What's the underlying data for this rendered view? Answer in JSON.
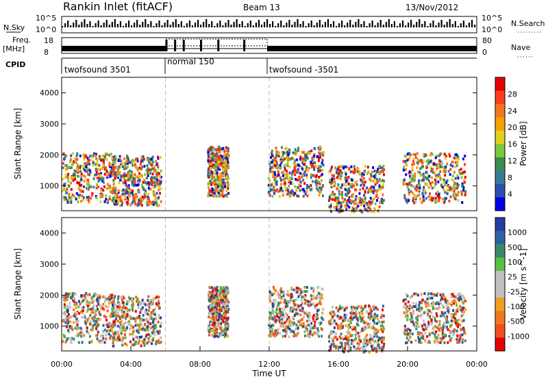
{
  "header": {
    "station": "Rankin Inlet (fitACF)",
    "beam": "Beam 13",
    "date": "13/Nov/2012"
  },
  "status_panels": {
    "nsky_label": "N.Sky",
    "nsearch_label": "N.Search",
    "freq_label_top": "Freq.",
    "freq_label_bottom": "[MHz]",
    "nave_label": "Nave",
    "cpid_label": "CPID",
    "left_ticks_top": [
      "10^5",
      "10^0"
    ],
    "right_ticks_top": [
      "10^5",
      "10^0"
    ],
    "freq_ticks": [
      "18",
      "8"
    ],
    "nave_ticks": [
      "80",
      "0"
    ],
    "cpid_segments": [
      {
        "label": "twofsound 3501",
        "start_h": 0,
        "end_h": 6
      },
      {
        "label": "normal 150",
        "start_h": 6,
        "end_h": 12
      },
      {
        "label": "twofsound -3501",
        "start_h": 12,
        "end_h": 24
      }
    ]
  },
  "x_axis": {
    "title": "Time UT",
    "ticks": [
      "00:00",
      "04:00",
      "08:00",
      "12:00",
      "16:00",
      "20:00",
      "00:00"
    ]
  },
  "chart_data": [
    {
      "type": "heatmap",
      "name": "power",
      "ylabel": "Slant Range [km]",
      "yticks": [
        1000,
        2000,
        3000,
        4000
      ],
      "ylim": [
        200,
        4500
      ],
      "xlim_hours": [
        0,
        24
      ],
      "colorbar_label": "Power [dB]",
      "colorbar_ticks": [
        "28",
        "24",
        "20",
        "16",
        "12",
        "8",
        "4"
      ],
      "colorbar_colors": [
        "#e60000",
        "#ff3c1e",
        "#f0781e",
        "#f8a000",
        "#e0d020",
        "#7ac83c",
        "#3a8c50",
        "#3a7a96",
        "#2b4fb0",
        "#0000e6"
      ]
    },
    {
      "type": "heatmap",
      "name": "velocity",
      "ylabel": "Slant Range [km]",
      "yticks": [
        1000,
        2000,
        3000,
        4000
      ],
      "ylim": [
        200,
        4500
      ],
      "xlim_hours": [
        0,
        24
      ],
      "colorbar_label": "Velocity [m s^-1]",
      "colorbar_ticks": [
        "1000",
        "500",
        "100",
        "25",
        "-25",
        "-100",
        "-500",
        "-1000"
      ],
      "colorbar_colors": [
        "#2a3ca0",
        "#2e62a6",
        "#3a8a6a",
        "#5ac040",
        "#c0c0c0",
        "#c0c0c0",
        "#f0a020",
        "#f07820",
        "#f05020",
        "#e60000"
      ]
    }
  ]
}
